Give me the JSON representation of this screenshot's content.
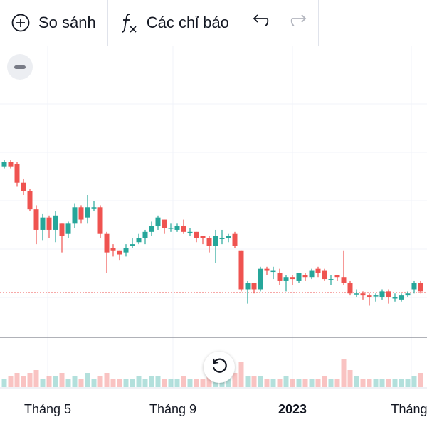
{
  "toolbar": {
    "compare_label": "So sánh",
    "indicators_label": "Các chỉ báo",
    "icons": [
      "plus-circle-icon",
      "fx-icon",
      "undo-icon",
      "redo-icon"
    ]
  },
  "chart": {
    "colors": {
      "up": "#26a69a",
      "down": "#ef5350",
      "grid": "#f0f3fa",
      "price_line": "#ef5350"
    },
    "x_labels": [
      "Tháng 5",
      "Tháng 9",
      "2023",
      "Tháng"
    ]
  },
  "chart_data": {
    "type": "candlestick",
    "candles": [
      {
        "o": 0.64,
        "c": 0.66,
        "h": 0.67,
        "l": 0.63,
        "v": 0.3
      },
      {
        "o": 0.66,
        "c": 0.64,
        "h": 0.67,
        "l": 0.63,
        "v": 0.4
      },
      {
        "o": 0.65,
        "c": 0.56,
        "h": 0.66,
        "l": 0.54,
        "v": 0.5
      },
      {
        "o": 0.56,
        "c": 0.52,
        "h": 0.58,
        "l": 0.5,
        "v": 0.4
      },
      {
        "o": 0.52,
        "c": 0.43,
        "h": 0.53,
        "l": 0.42,
        "v": 0.5
      },
      {
        "o": 0.43,
        "c": 0.33,
        "h": 0.45,
        "l": 0.26,
        "v": 0.6
      },
      {
        "o": 0.33,
        "c": 0.39,
        "h": 0.41,
        "l": 0.28,
        "v": 0.3
      },
      {
        "o": 0.39,
        "c": 0.33,
        "h": 0.4,
        "l": 0.29,
        "v": 0.4
      },
      {
        "o": 0.33,
        "c": 0.4,
        "h": 0.42,
        "l": 0.27,
        "v": 0.4
      },
      {
        "o": 0.36,
        "c": 0.3,
        "h": 0.36,
        "l": 0.22,
        "v": 0.5
      },
      {
        "o": 0.31,
        "c": 0.36,
        "h": 0.37,
        "l": 0.29,
        "v": 0.3
      },
      {
        "o": 0.36,
        "c": 0.44,
        "h": 0.46,
        "l": 0.34,
        "v": 0.4
      },
      {
        "o": 0.44,
        "c": 0.38,
        "h": 0.45,
        "l": 0.36,
        "v": 0.3
      },
      {
        "o": 0.39,
        "c": 0.44,
        "h": 0.5,
        "l": 0.36,
        "v": 0.5
      },
      {
        "o": 0.44,
        "c": 0.44,
        "h": 0.47,
        "l": 0.42,
        "v": 0.3
      },
      {
        "o": 0.44,
        "c": 0.31,
        "h": 0.45,
        "l": 0.29,
        "v": 0.4
      },
      {
        "o": 0.31,
        "c": 0.22,
        "h": 0.32,
        "l": 0.12,
        "v": 0.5
      },
      {
        "o": 0.24,
        "c": 0.23,
        "h": 0.26,
        "l": 0.2,
        "v": 0.3
      },
      {
        "o": 0.23,
        "c": 0.21,
        "h": 0.23,
        "l": 0.18,
        "v": 0.3
      },
      {
        "o": 0.22,
        "c": 0.24,
        "h": 0.26,
        "l": 0.2,
        "v": 0.3
      },
      {
        "o": 0.25,
        "c": 0.26,
        "h": 0.29,
        "l": 0.24,
        "v": 0.3
      },
      {
        "o": 0.27,
        "c": 0.29,
        "h": 0.31,
        "l": 0.26,
        "v": 0.4
      },
      {
        "o": 0.29,
        "c": 0.32,
        "h": 0.33,
        "l": 0.26,
        "v": 0.3
      },
      {
        "o": 0.32,
        "c": 0.35,
        "h": 0.37,
        "l": 0.3,
        "v": 0.4
      },
      {
        "o": 0.35,
        "c": 0.39,
        "h": 0.4,
        "l": 0.33,
        "v": 0.4
      },
      {
        "o": 0.38,
        "c": 0.34,
        "h": 0.38,
        "l": 0.31,
        "v": 0.3
      },
      {
        "o": 0.34,
        "c": 0.34,
        "h": 0.36,
        "l": 0.32,
        "v": 0.3
      },
      {
        "o": 0.33,
        "c": 0.35,
        "h": 0.36,
        "l": 0.32,
        "v": 0.3
      },
      {
        "o": 0.35,
        "c": 0.32,
        "h": 0.38,
        "l": 0.31,
        "v": 0.4
      },
      {
        "o": 0.32,
        "c": 0.32,
        "h": 0.34,
        "l": 0.3,
        "v": 0.3
      },
      {
        "o": 0.32,
        "c": 0.29,
        "h": 0.32,
        "l": 0.27,
        "v": 0.3
      },
      {
        "o": 0.3,
        "c": 0.29,
        "h": 0.3,
        "l": 0.26,
        "v": 0.3
      },
      {
        "o": 0.29,
        "c": 0.25,
        "h": 0.3,
        "l": 0.22,
        "v": 0.4
      },
      {
        "o": 0.25,
        "c": 0.3,
        "h": 0.33,
        "l": 0.17,
        "v": 0.3
      },
      {
        "o": 0.29,
        "c": 0.29,
        "h": 0.33,
        "l": 0.26,
        "v": 0.3
      },
      {
        "o": 0.29,
        "c": 0.3,
        "h": 0.31,
        "l": 0.27,
        "v": 0.4
      },
      {
        "o": 0.31,
        "c": 0.25,
        "h": 0.32,
        "l": 0.24,
        "v": 0.5
      },
      {
        "o": 0.23,
        "c": 0.04,
        "h": 0.23,
        "l": 0.03,
        "v": 0.9
      },
      {
        "o": 0.04,
        "c": 0.07,
        "h": 0.08,
        "l": -0.03,
        "v": 0.4
      },
      {
        "o": 0.07,
        "c": 0.04,
        "h": 0.07,
        "l": 0.02,
        "v": 0.4
      },
      {
        "o": 0.04,
        "c": 0.14,
        "h": 0.15,
        "l": 0.03,
        "v": 0.4
      },
      {
        "o": 0.14,
        "c": 0.13,
        "h": 0.15,
        "l": 0.11,
        "v": 0.3
      },
      {
        "o": 0.13,
        "c": 0.13,
        "h": 0.15,
        "l": 0.09,
        "v": 0.3
      },
      {
        "o": 0.12,
        "c": 0.08,
        "h": 0.14,
        "l": 0.06,
        "v": 0.3
      },
      {
        "o": 0.08,
        "c": 0.1,
        "h": 0.11,
        "l": 0.03,
        "v": 0.4
      },
      {
        "o": 0.1,
        "c": 0.09,
        "h": 0.11,
        "l": 0.06,
        "v": 0.3
      },
      {
        "o": 0.08,
        "c": 0.12,
        "h": 0.12,
        "l": 0.07,
        "v": 0.3
      },
      {
        "o": 0.11,
        "c": 0.1,
        "h": 0.12,
        "l": 0.08,
        "v": 0.3
      },
      {
        "o": 0.1,
        "c": 0.13,
        "h": 0.14,
        "l": 0.09,
        "v": 0.3
      },
      {
        "o": 0.14,
        "c": 0.12,
        "h": 0.15,
        "l": 0.1,
        "v": 0.3
      },
      {
        "o": 0.13,
        "c": 0.09,
        "h": 0.14,
        "l": 0.08,
        "v": 0.4
      },
      {
        "o": 0.09,
        "c": 0.09,
        "h": 0.11,
        "l": 0.06,
        "v": 0.3
      },
      {
        "o": 0.11,
        "c": 0.1,
        "h": 0.11,
        "l": 0.08,
        "v": 0.3
      },
      {
        "o": 0.1,
        "c": 0.07,
        "h": 0.23,
        "l": 0.06,
        "v": 1.0
      },
      {
        "o": 0.07,
        "c": 0.02,
        "h": 0.08,
        "l": 0.01,
        "v": 0.6
      },
      {
        "o": 0.02,
        "c": 0.02,
        "h": 0.04,
        "l": 0.0,
        "v": 0.4
      },
      {
        "o": 0.02,
        "c": 0.01,
        "h": 0.03,
        "l": -0.01,
        "v": 0.3
      },
      {
        "o": 0.01,
        "c": 0.0,
        "h": 0.02,
        "l": -0.04,
        "v": 0.3
      },
      {
        "o": 0.01,
        "c": 0.01,
        "h": 0.02,
        "l": -0.02,
        "v": 0.3
      },
      {
        "o": 0.0,
        "c": 0.03,
        "h": 0.04,
        "l": -0.01,
        "v": 0.3
      },
      {
        "o": 0.03,
        "c": 0.0,
        "h": 0.04,
        "l": -0.03,
        "v": 0.3
      },
      {
        "o": 0.0,
        "c": 0.0,
        "h": 0.02,
        "l": -0.02,
        "v": 0.3
      },
      {
        "o": -0.01,
        "c": 0.01,
        "h": 0.02,
        "l": -0.02,
        "v": 0.3
      },
      {
        "o": 0.01,
        "c": 0.02,
        "h": 0.03,
        "l": 0.0,
        "v": 0.3
      },
      {
        "o": 0.04,
        "c": 0.07,
        "h": 0.08,
        "l": 0.02,
        "v": 0.4
      },
      {
        "o": 0.07,
        "c": 0.03,
        "h": 0.08,
        "l": 0.02,
        "v": 0.5
      }
    ]
  }
}
